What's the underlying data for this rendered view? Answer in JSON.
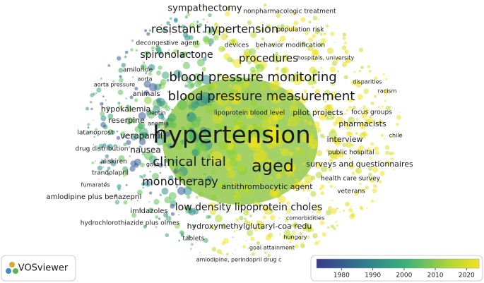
{
  "labels": [
    "sympathectomy",
    "nonpharmacologic treatment",
    "resistant hypertension",
    "population risk",
    "decongestive agent",
    "devices",
    "behavior modification",
    "spironolactone",
    "procedures",
    "hospitals, university",
    "amiloride",
    "aorta",
    "blood pressure monitoring",
    "disparities",
    "aorta pressure",
    "animals",
    "blood pressure measurement",
    "racism",
    "hypokalemia",
    "leptin",
    "lipoprotein blood level",
    "pilot projects",
    "focus groups",
    "reserpine",
    "anemia",
    "pharmacists",
    "latanoprost",
    "verapamil",
    "hypertension",
    "chile",
    "interview",
    "drug distribution",
    "nausea",
    "public hospital",
    "aliskiren",
    "gout",
    "clinical trial",
    "aged",
    "surveys and questionnaires",
    "trandolapril",
    "health care survey",
    "monotherapy",
    "fumarates",
    "antithrombocytic agent",
    "veterans",
    "amlodipine plus benazepril",
    "low density lipoprotein choles",
    "imidazoles",
    "comorbidities",
    "hydrochlorothiazide plus olmes",
    "hydroxymethylglutaryl-coa redu",
    "tablets",
    "hungary",
    "goal attainment",
    "amlodipine, perindopril drug c"
  ],
  "logo": "VOSviewer",
  "colorbar": {
    "range": [
      1972,
      2024
    ],
    "ticks": [
      1980,
      1990,
      2000,
      2010,
      2020
    ]
  }
}
